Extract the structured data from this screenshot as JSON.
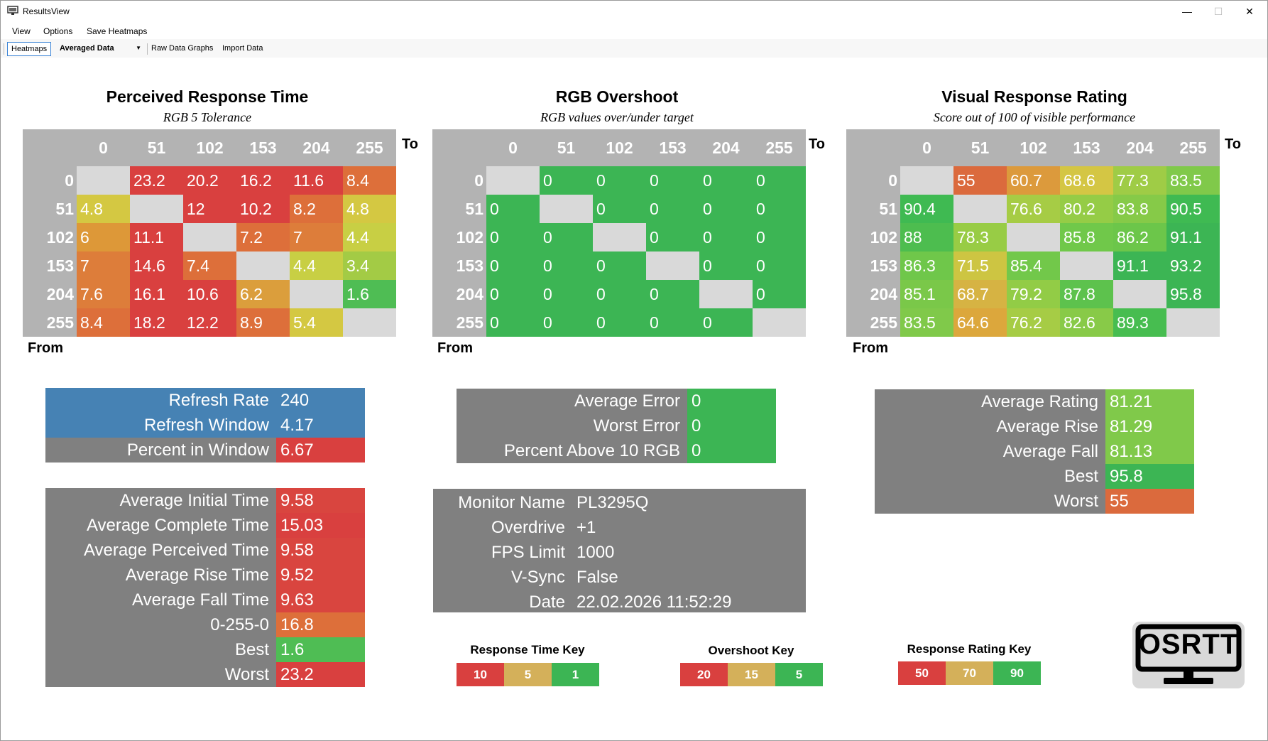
{
  "window": {
    "title": "ResultsView"
  },
  "menu": [
    "View",
    "Options",
    "Save Heatmaps"
  ],
  "toolbar": {
    "tab_heatmaps": "Heatmaps",
    "selector": "Averaged Data",
    "raw_data": "Raw Data Graphs",
    "import": "Import Data"
  },
  "labels": {
    "to": "To",
    "from": "From"
  },
  "heatmaps": [
    {
      "title": "Perceived Response Time",
      "subtitle": "RGB 5 Tolerance",
      "cols": [
        "0",
        "51",
        "102",
        "153",
        "204",
        "255"
      ],
      "rows": [
        "0",
        "51",
        "102",
        "153",
        "204",
        "255"
      ],
      "cells": [
        [
          null,
          "23.2",
          "20.2",
          "16.2",
          "11.6",
          "8.4"
        ],
        [
          "4.8",
          null,
          "12",
          "10.2",
          "8.2",
          "4.8"
        ],
        [
          "6",
          "11.1",
          null,
          "7.2",
          "7",
          "4.4"
        ],
        [
          "7",
          "14.6",
          "7.4",
          null,
          "4.4",
          "3.4"
        ],
        [
          "7.6",
          "16.1",
          "10.6",
          "6.2",
          null,
          "1.6"
        ],
        [
          "8.4",
          "18.2",
          "12.2",
          "8.9",
          "5.4",
          null
        ]
      ],
      "colors": [
        [
          null,
          "#d9403f",
          "#d9403f",
          "#d9403f",
          "#d9403f",
          "#dd6f3a"
        ],
        [
          "#d4c842",
          null,
          "#d9403f",
          "#d9403f",
          "#dd6f3a",
          "#d4c842"
        ],
        [
          "#dd9838",
          "#d9403f",
          null,
          "#dd6f3a",
          "#dd7d3a",
          "#c8cf44"
        ],
        [
          "#dd7d3a",
          "#d9403f",
          "#dd6f3a",
          null,
          "#c8cf44",
          "#a3cb45"
        ],
        [
          "#dd7d3a",
          "#d9403f",
          "#d9403f",
          "#db9e3c",
          null,
          "#4fbd54"
        ],
        [
          "#dd6f3a",
          "#d9403f",
          "#d9403f",
          "#dd6f3a",
          "#d4c842",
          null
        ]
      ]
    },
    {
      "title": "RGB Overshoot",
      "subtitle": "RGB values over/under target",
      "cols": [
        "0",
        "51",
        "102",
        "153",
        "204",
        "255"
      ],
      "rows": [
        "0",
        "51",
        "102",
        "153",
        "204",
        "255"
      ],
      "cells": [
        [
          null,
          "0",
          "0",
          "0",
          "0",
          "0"
        ],
        [
          "0",
          null,
          "0",
          "0",
          "0",
          "0"
        ],
        [
          "0",
          "0",
          null,
          "0",
          "0",
          "0"
        ],
        [
          "0",
          "0",
          "0",
          null,
          "0",
          "0"
        ],
        [
          "0",
          "0",
          "0",
          "0",
          null,
          "0"
        ],
        [
          "0",
          "0",
          "0",
          "0",
          "0",
          null
        ]
      ],
      "colors": [
        [
          null,
          "#3cb554",
          "#3cb554",
          "#3cb554",
          "#3cb554",
          "#3cb554"
        ],
        [
          "#3cb554",
          null,
          "#3cb554",
          "#3cb554",
          "#3cb554",
          "#3cb554"
        ],
        [
          "#3cb554",
          "#3cb554",
          null,
          "#3cb554",
          "#3cb554",
          "#3cb554"
        ],
        [
          "#3cb554",
          "#3cb554",
          "#3cb554",
          null,
          "#3cb554",
          "#3cb554"
        ],
        [
          "#3cb554",
          "#3cb554",
          "#3cb554",
          "#3cb554",
          null,
          "#3cb554"
        ],
        [
          "#3cb554",
          "#3cb554",
          "#3cb554",
          "#3cb554",
          "#3cb554",
          null
        ]
      ]
    },
    {
      "title": "Visual Response Rating",
      "subtitle": "Score out of 100 of visible performance",
      "cols": [
        "0",
        "51",
        "102",
        "153",
        "204",
        "255"
      ],
      "rows": [
        "0",
        "51",
        "102",
        "153",
        "204",
        "255"
      ],
      "cells": [
        [
          null,
          "55",
          "60.7",
          "68.6",
          "77.3",
          "83.5"
        ],
        [
          "90.4",
          null,
          "76.6",
          "80.2",
          "83.8",
          "90.5"
        ],
        [
          "88",
          "78.3",
          null,
          "85.8",
          "86.2",
          "91.1"
        ],
        [
          "86.3",
          "71.5",
          "85.4",
          null,
          "91.1",
          "93.2"
        ],
        [
          "85.1",
          "68.7",
          "79.2",
          "87.8",
          null,
          "95.8"
        ],
        [
          "83.5",
          "64.6",
          "76.2",
          "82.6",
          "89.3",
          null
        ]
      ],
      "colors": [
        [
          null,
          "#db6a3d",
          "#dc9a3c",
          "#d4c644",
          "#9fcc46",
          "#80c94a"
        ],
        [
          "#3fba52",
          null,
          "#a6cc45",
          "#95cc46",
          "#86ca48",
          "#3fba52"
        ],
        [
          "#4dbd4f",
          "#98cc45",
          null,
          "#70c84a",
          "#6cc64a",
          "#3cb554"
        ],
        [
          "#6fc74a",
          "#cdc542",
          "#72c84a",
          null,
          "#3cb554",
          "#3cb554"
        ],
        [
          "#7ac849",
          "#d6b343",
          "#92cc46",
          "#5dc24d",
          null,
          "#3cb554"
        ],
        [
          "#80c94a",
          "#dca73c",
          "#a6cc45",
          "#88ca48",
          "#47bd50",
          null
        ]
      ]
    }
  ],
  "panels": {
    "refresh": [
      {
        "label": "Refresh Rate",
        "value": "240",
        "bg": "#4682b4",
        "vbg": "#4682b4"
      },
      {
        "label": "Refresh Window",
        "value": "4.17",
        "bg": "#4682b4",
        "vbg": "#4682b4"
      },
      {
        "label": "Percent in Window",
        "value": "6.67",
        "bg": "#808080",
        "vbg": "#d9403f"
      }
    ],
    "times": [
      {
        "label": "Average Initial Time",
        "value": "9.58",
        "vbg": "#d9453f"
      },
      {
        "label": "Average Complete Time",
        "value": "15.03",
        "vbg": "#d9403f"
      },
      {
        "label": "Average Perceived Time",
        "value": "9.58",
        "vbg": "#d9453f"
      },
      {
        "label": "Average Rise Time",
        "value": "9.52",
        "vbg": "#d9453f"
      },
      {
        "label": "Average Fall Time",
        "value": "9.63",
        "vbg": "#d9453f"
      },
      {
        "label": "0-255-0",
        "value": "16.8",
        "vbg": "#dd6f3a"
      },
      {
        "label": "Best",
        "value": "1.6",
        "vbg": "#4fbd54"
      },
      {
        "label": "Worst",
        "value": "23.2",
        "vbg": "#d9403f"
      }
    ],
    "errors": [
      {
        "label": "Average Error",
        "value": "0",
        "vbg": "#3cb554"
      },
      {
        "label": "Worst Error",
        "value": "0",
        "vbg": "#3cb554"
      },
      {
        "label": "Percent Above 10 RGB",
        "value": "0",
        "vbg": "#3cb554"
      }
    ],
    "monitor": [
      {
        "label": "Monitor Name",
        "value": "PL3295Q"
      },
      {
        "label": "Overdrive",
        "value": "+1"
      },
      {
        "label": "FPS Limit",
        "value": "1000"
      },
      {
        "label": "V-Sync",
        "value": "False"
      },
      {
        "label": "Date",
        "value": "22.02.2026 11:52:29"
      }
    ],
    "rating": [
      {
        "label": "Average Rating",
        "value": "81.21",
        "vbg": "#80c94a"
      },
      {
        "label": "Average Rise",
        "value": "81.29",
        "vbg": "#80c94a"
      },
      {
        "label": "Average Fall",
        "value": "81.13",
        "vbg": "#80c94a"
      },
      {
        "label": "Best",
        "value": "95.8",
        "vbg": "#3cb554"
      },
      {
        "label": "Worst",
        "value": "55",
        "vbg": "#db6a3d"
      }
    ]
  },
  "keys": [
    {
      "title": "Response Time Key",
      "values": [
        "10",
        "5",
        "1"
      ],
      "colors": [
        "#d9403f",
        "#d4b05a",
        "#3cb554"
      ]
    },
    {
      "title": "Overshoot Key",
      "values": [
        "20",
        "15",
        "5"
      ],
      "colors": [
        "#d9403f",
        "#d4b05a",
        "#3cb554"
      ]
    },
    {
      "title": "Response Rating Key",
      "values": [
        "50",
        "70",
        "90"
      ],
      "colors": [
        "#d9403f",
        "#d4b05a",
        "#3cb554"
      ]
    }
  ],
  "logo": {
    "text": "OSRTT",
    "bg": "#d9d9d9"
  }
}
